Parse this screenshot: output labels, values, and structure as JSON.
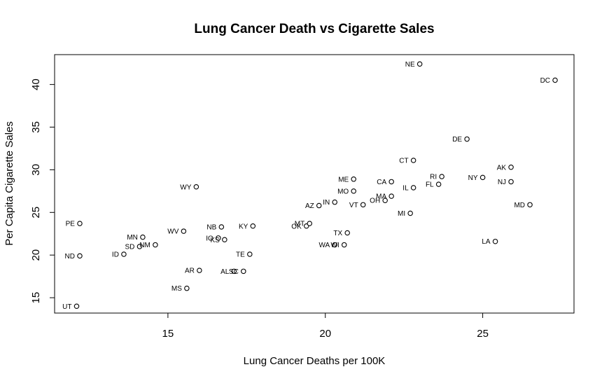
{
  "chart_data": {
    "type": "scatter",
    "title": "Lung Cancer Death vs Cigarette Sales",
    "xlabel": "Lung Cancer Deaths per 100K",
    "ylabel": "Per Capita Cigarette Sales",
    "xlim": [
      11.4,
      27.9
    ],
    "ylim": [
      13.2,
      43.5
    ],
    "xticks": [
      15,
      20,
      25
    ],
    "yticks": [
      15,
      20,
      25,
      30,
      35,
      40
    ],
    "points": [
      {
        "label": "UT",
        "x": 12.1,
        "y": 14.0
      },
      {
        "label": "PE",
        "x": 12.2,
        "y": 23.7
      },
      {
        "label": "ND",
        "x": 12.2,
        "y": 19.9
      },
      {
        "label": "ID",
        "x": 13.6,
        "y": 20.1
      },
      {
        "label": "SD",
        "x": 14.1,
        "y": 21.0
      },
      {
        "label": "MN",
        "x": 14.2,
        "y": 22.1
      },
      {
        "label": "NM",
        "x": 14.6,
        "y": 21.2
      },
      {
        "label": "WV",
        "x": 15.5,
        "y": 22.8
      },
      {
        "label": "MS",
        "x": 15.6,
        "y": 16.1
      },
      {
        "label": "WY",
        "x": 15.9,
        "y": 28.0
      },
      {
        "label": "AR",
        "x": 16.0,
        "y": 18.2
      },
      {
        "label": "IO",
        "x": 16.6,
        "y": 22.0
      },
      {
        "label": "NB",
        "x": 16.7,
        "y": 23.3
      },
      {
        "label": "KS",
        "x": 16.8,
        "y": 21.8
      },
      {
        "label": "AL",
        "x": 17.1,
        "y": 18.1
      },
      {
        "label": "SC",
        "x": 17.4,
        "y": 18.1
      },
      {
        "label": "TE",
        "x": 17.6,
        "y": 20.1
      },
      {
        "label": "KY",
        "x": 17.7,
        "y": 23.4
      },
      {
        "label": "OK",
        "x": 19.4,
        "y": 23.4
      },
      {
        "label": "MT",
        "x": 19.5,
        "y": 23.7
      },
      {
        "label": "AZ",
        "x": 19.8,
        "y": 25.8
      },
      {
        "label": "IN",
        "x": 20.3,
        "y": 26.2
      },
      {
        "label": "WA",
        "x": 20.3,
        "y": 21.2
      },
      {
        "label": "WI",
        "x": 20.6,
        "y": 21.2
      },
      {
        "label": "TX",
        "x": 20.7,
        "y": 22.6
      },
      {
        "label": "ME",
        "x": 20.9,
        "y": 28.9
      },
      {
        "label": "MO",
        "x": 20.9,
        "y": 27.5
      },
      {
        "label": "VT",
        "x": 21.2,
        "y": 25.9
      },
      {
        "label": "OH",
        "x": 21.9,
        "y": 26.4
      },
      {
        "label": "MA",
        "x": 22.1,
        "y": 26.9
      },
      {
        "label": "CA",
        "x": 22.1,
        "y": 28.6
      },
      {
        "label": "MI",
        "x": 22.7,
        "y": 24.9
      },
      {
        "label": "CT",
        "x": 22.8,
        "y": 31.1
      },
      {
        "label": "IL",
        "x": 22.8,
        "y": 27.9
      },
      {
        "label": "NE",
        "x": 23.0,
        "y": 42.4
      },
      {
        "label": "FL",
        "x": 23.6,
        "y": 28.3
      },
      {
        "label": "RI",
        "x": 23.7,
        "y": 29.2
      },
      {
        "label": "DE",
        "x": 24.5,
        "y": 33.6
      },
      {
        "label": "NY",
        "x": 25.0,
        "y": 29.1
      },
      {
        "label": "LA",
        "x": 25.4,
        "y": 21.6
      },
      {
        "label": "AK",
        "x": 25.9,
        "y": 30.3
      },
      {
        "label": "NJ",
        "x": 25.9,
        "y": 28.6
      },
      {
        "label": "MD",
        "x": 26.5,
        "y": 25.9
      },
      {
        "label": "DC",
        "x": 27.3,
        "y": 40.5
      }
    ]
  }
}
